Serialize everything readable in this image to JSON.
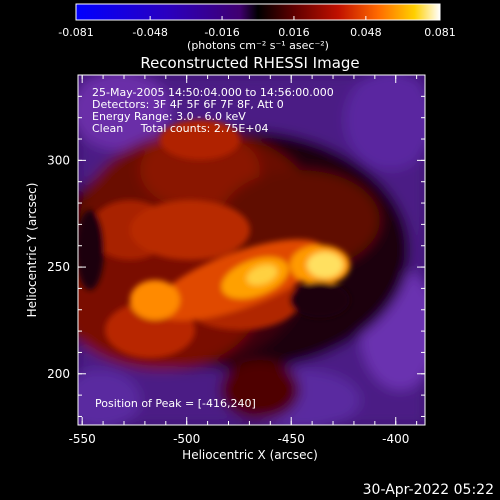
{
  "colorbar": {
    "ticks": [
      "-0.081",
      "-0.048",
      "-0.016",
      "0.016",
      "0.048",
      "0.081"
    ],
    "tick_values": [
      -0.081,
      -0.048,
      -0.016,
      0.016,
      0.048,
      0.081
    ],
    "range": [
      -0.081,
      0.081
    ],
    "units_label": "(photons cm⁻² s⁻¹ asec⁻²)"
  },
  "plot": {
    "title": "Reconstructed RHESSI Image",
    "info_lines": [
      "25-May-2005 14:50:04.000 to 14:56:00.000",
      "Detectors: 3F 4F 5F 6F 7F 8F, Att 0",
      "Energy Range: 3.0 - 6.0 keV",
      "Clean     Total counts: 2.75E+04"
    ],
    "peak_label": "Position of Peak = [-416,240]",
    "xlabel": "Heliocentric X (arcsec)",
    "ylabel": "Heliocentric Y (arcsec)",
    "xticks": [
      "-550",
      "-500",
      "-450",
      "-400"
    ],
    "xtick_values": [
      -550,
      -500,
      -450,
      -400
    ],
    "yticks": [
      "200",
      "250",
      "300"
    ],
    "ytick_values": [
      200,
      250,
      300
    ],
    "xlim": [
      -552,
      -386
    ],
    "ylim": [
      176,
      340
    ]
  },
  "footer": {
    "timestamp": "30-Apr-2022 05:22"
  },
  "colors": {
    "background": "#000000",
    "axis": "#ffffff"
  }
}
